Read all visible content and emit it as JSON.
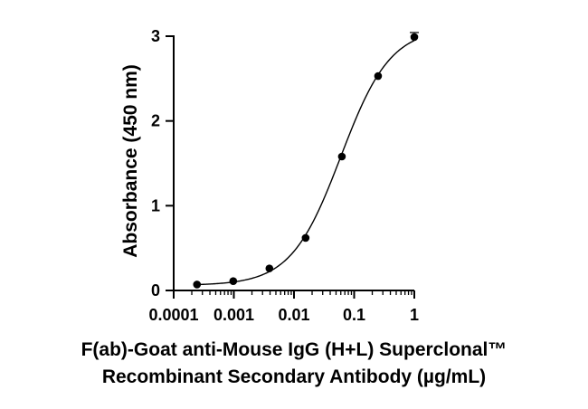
{
  "chart_data": {
    "type": "scatter",
    "title": "",
    "xlabel_lines": [
      "F(ab)-Goat anti-Mouse IgG (H+L) Superclonal™",
      "Recombinant Secondary Antibody (µg/mL)"
    ],
    "ylabel": "Absorbance (450 nm)",
    "x_scale": "log",
    "xlim": [
      0.0001,
      1
    ],
    "ylim": [
      0,
      3
    ],
    "x_ticks": [
      {
        "value": 0.0001,
        "label": "0.0001"
      },
      {
        "value": 0.001,
        "label": "0.001"
      },
      {
        "value": 0.01,
        "label": "0.01"
      },
      {
        "value": 0.1,
        "label": "0.1"
      },
      {
        "value": 1,
        "label": "1"
      }
    ],
    "y_ticks": [
      {
        "value": 0,
        "label": "0"
      },
      {
        "value": 1,
        "label": "1"
      },
      {
        "value": 2,
        "label": "2"
      },
      {
        "value": 3,
        "label": "3"
      }
    ],
    "grid": false,
    "series": [
      {
        "name": "Absorbance",
        "x": [
          0.000244,
          0.000977,
          0.0039,
          0.0156,
          0.0625,
          0.25,
          1
        ],
        "y": [
          0.07,
          0.11,
          0.26,
          0.62,
          1.58,
          2.53,
          2.99
        ]
      }
    ],
    "fit_curve": {
      "model": "4PL sigmoid",
      "bottom": 0.06,
      "top": 3.1,
      "ec50": 0.06,
      "hill": 1.05
    },
    "colors": {
      "marker": "#000000",
      "line": "#000000",
      "axis": "#000000"
    }
  }
}
